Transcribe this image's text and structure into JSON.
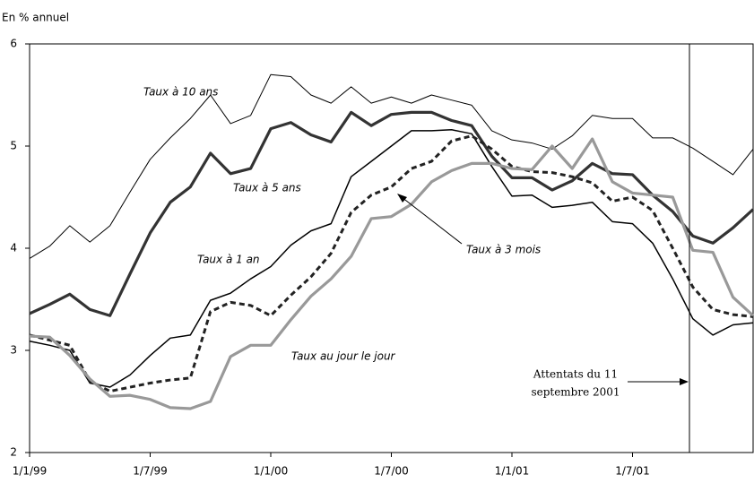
{
  "chart_data": {
    "type": "line",
    "y_label": "En % annuel",
    "categories": [
      "1/1/99",
      null,
      null,
      null,
      null,
      null,
      "1/7/99",
      null,
      null,
      null,
      null,
      null,
      "1/1/00",
      null,
      null,
      null,
      null,
      null,
      "1/7/00",
      null,
      null,
      null,
      null,
      null,
      "1/1/01",
      null,
      null,
      null,
      null,
      null,
      "1/7/01",
      null,
      null,
      null,
      null,
      null,
      null
    ],
    "ylim": [
      2,
      6
    ],
    "yticks": [
      2,
      3,
      4,
      5,
      6
    ],
    "grid": false,
    "series": [
      {
        "name": "Taux à 10 ans",
        "color": "#000000",
        "style": "thin",
        "values": [
          3.9,
          4.02,
          4.22,
          4.06,
          4.22,
          4.55,
          4.87,
          5.08,
          5.27,
          5.5,
          5.22,
          5.3,
          5.7,
          5.68,
          5.5,
          5.42,
          5.58,
          5.42,
          5.48,
          5.42,
          5.5,
          5.45,
          5.4,
          5.15,
          5.06,
          5.03,
          4.97,
          5.1,
          5.3,
          5.27,
          5.27,
          5.08,
          5.08,
          4.98,
          4.85,
          4.72,
          4.97
        ]
      },
      {
        "name": "Taux à 5 ans",
        "color": "#333333",
        "style": "thick",
        "values": [
          3.36,
          3.45,
          3.55,
          3.4,
          3.34,
          3.75,
          4.15,
          4.45,
          4.6,
          4.93,
          4.73,
          4.78,
          5.17,
          5.23,
          5.11,
          5.04,
          5.33,
          5.2,
          5.31,
          5.33,
          5.33,
          5.25,
          5.2,
          4.9,
          4.69,
          4.69,
          4.57,
          4.66,
          4.83,
          4.73,
          4.72,
          4.52,
          4.36,
          4.12,
          4.05,
          4.2,
          4.38
        ]
      },
      {
        "name": "Taux à 1 an",
        "color": "#000000",
        "style": "medium",
        "values": [
          3.09,
          3.05,
          3.0,
          2.68,
          2.64,
          2.76,
          2.95,
          3.12,
          3.15,
          3.49,
          3.56,
          3.7,
          3.82,
          4.03,
          4.17,
          4.24,
          4.7,
          4.85,
          5.0,
          5.15,
          5.15,
          5.16,
          5.12,
          4.8,
          4.51,
          4.52,
          4.4,
          4.42,
          4.45,
          4.26,
          4.24,
          4.05,
          3.7,
          3.31,
          3.15,
          3.25,
          3.27
        ]
      },
      {
        "name": "Taux à 3 mois",
        "color": "#222222",
        "style": "dashed",
        "values": [
          3.15,
          3.1,
          3.05,
          2.7,
          2.6,
          2.64,
          2.68,
          2.71,
          2.73,
          3.38,
          3.47,
          3.44,
          3.34,
          3.54,
          3.72,
          3.95,
          4.35,
          4.52,
          4.6,
          4.78,
          4.85,
          5.05,
          5.1,
          4.97,
          4.8,
          4.75,
          4.74,
          4.7,
          4.64,
          4.46,
          4.5,
          4.37,
          4.0,
          3.62,
          3.4,
          3.35,
          3.33
        ]
      },
      {
        "name": "Taux au jour le jour",
        "color": "#999999",
        "style": "thick",
        "values": [
          3.14,
          3.13,
          2.95,
          2.72,
          2.55,
          2.56,
          2.52,
          2.44,
          2.43,
          2.5,
          2.94,
          3.05,
          3.05,
          3.3,
          3.53,
          3.7,
          3.92,
          4.29,
          4.31,
          4.43,
          4.65,
          4.76,
          4.83,
          4.83,
          4.78,
          4.77,
          5.0,
          4.78,
          5.07,
          4.65,
          4.54,
          4.52,
          4.5,
          3.98,
          3.96,
          3.52,
          3.34
        ]
      }
    ],
    "annotation": [
      "Attentats du 11",
      "septembre 2001"
    ]
  }
}
